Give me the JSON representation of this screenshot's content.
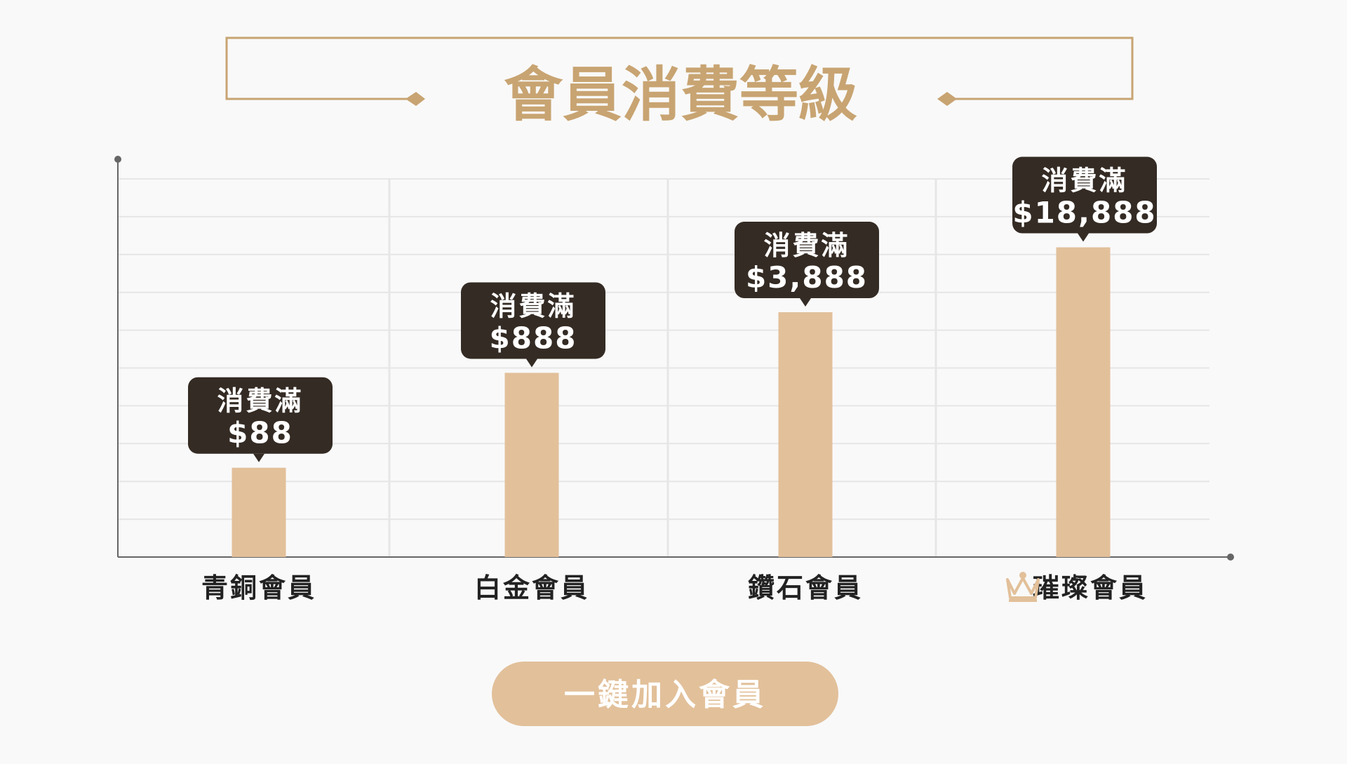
{
  "title": "會員消費等級",
  "colors": {
    "background": "#f9f9f9",
    "accent": "#c8a472",
    "bar": "#e2c09a",
    "tooltip_bg": "#342b24",
    "tooltip_text": "#ffffff",
    "axis": "#666666",
    "grid": "#e6e6e6",
    "label_text": "#222222",
    "button_text": "#ffffff"
  },
  "chart_data": {
    "type": "bar",
    "title": "",
    "xlabel": "",
    "ylabel": "",
    "categories": [
      "青銅會員",
      "白金會員",
      "鑽石會員",
      "璀璨會員"
    ],
    "values": [
      88,
      888,
      3888,
      18888
    ],
    "data_labels": [
      {
        "line1": "消費滿",
        "line2": "$88"
      },
      {
        "line1": "消費滿",
        "line2": "$888"
      },
      {
        "line1": "消費滿",
        "line2": "$3,888"
      },
      {
        "line1": "消費滿",
        "line2": "$18,888"
      }
    ],
    "scale": "log",
    "ylim": [
      10,
      100000
    ],
    "grid": true,
    "legend": "none",
    "category_icons": [
      "",
      "",
      "",
      "crown-icon"
    ]
  },
  "button": {
    "label": "一鍵加入會員"
  }
}
